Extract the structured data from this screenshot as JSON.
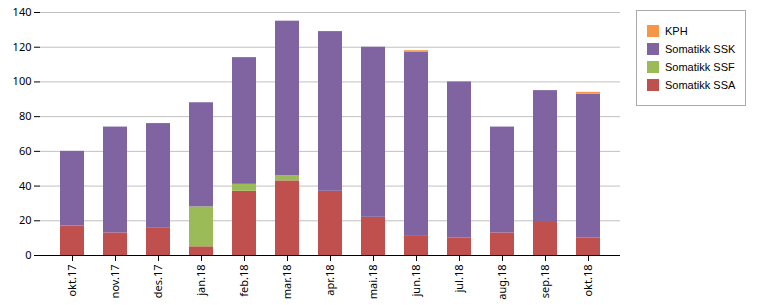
{
  "chart_data": {
    "type": "bar",
    "stacked": true,
    "categories": [
      "okt.17",
      "nov.17",
      "des.17",
      "jan.18",
      "feb.18",
      "mar.18",
      "apr.18",
      "mai.18",
      "jun.18",
      "jul.18",
      "aug.18",
      "sep.18",
      "okt.18"
    ],
    "series": [
      {
        "name": "Somatikk SSA",
        "color": "#C0504D",
        "values": [
          17,
          13,
          16,
          5,
          37,
          43,
          37,
          22,
          11,
          10,
          13,
          19,
          10
        ]
      },
      {
        "name": "Somatikk SSF",
        "color": "#9BBB59",
        "values": [
          0,
          0,
          0,
          23,
          4,
          3,
          0,
          0,
          0,
          0,
          0,
          0,
          0
        ]
      },
      {
        "name": "Somatikk SSK",
        "color": "#8064A2",
        "values": [
          43,
          61,
          60,
          60,
          73,
          89,
          92,
          98,
          106,
          90,
          61,
          76,
          83
        ]
      },
      {
        "name": "KPH",
        "color": "#F79646",
        "values": [
          0,
          0,
          0,
          0,
          0,
          0,
          0,
          0,
          1,
          0,
          0,
          0,
          1
        ]
      }
    ],
    "ylim": [
      0,
      140
    ],
    "yticks": [
      0,
      20,
      40,
      60,
      80,
      100,
      120,
      140
    ],
    "grid": true,
    "legend": "right"
  }
}
